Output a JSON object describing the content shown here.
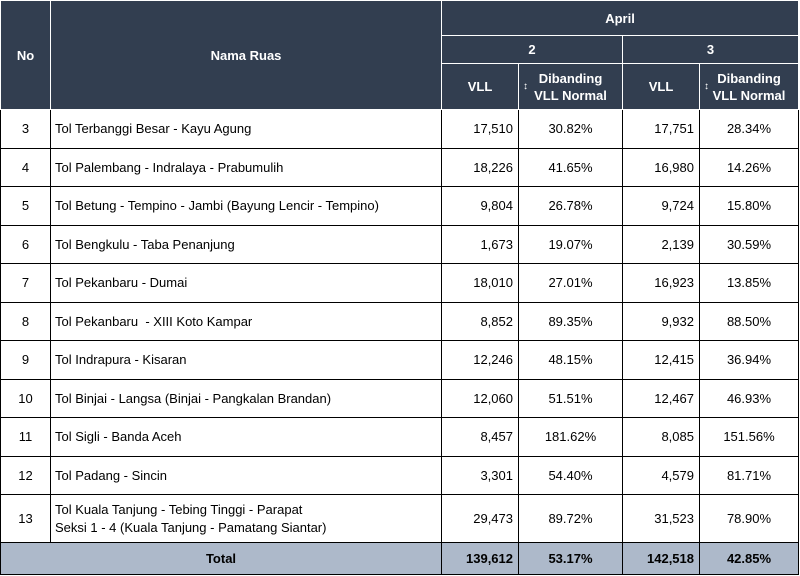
{
  "header": {
    "no": "No",
    "nama_ruas": "Nama Ruas",
    "month": "April",
    "day1": "2",
    "day2": "3",
    "vll": "VLL",
    "dibanding_line1": "Dibanding",
    "dibanding_line2": "VLL Normal",
    "arrow_icon": "↕"
  },
  "rows": [
    {
      "no": "3",
      "name": "Tol Terbanggi Besar - Kayu Agung",
      "vll1": "17,510",
      "pct1": "30.82%",
      "vll2": "17,751",
      "pct2": "28.34%"
    },
    {
      "no": "4",
      "name": "Tol Palembang - Indralaya - Prabumulih",
      "vll1": "18,226",
      "pct1": "41.65%",
      "vll2": "16,980",
      "pct2": "14.26%"
    },
    {
      "no": "5",
      "name": "Tol Betung - Tempino - Jambi (Bayung Lencir - Tempino)",
      "vll1": "9,804",
      "pct1": "26.78%",
      "vll2": "9,724",
      "pct2": "15.80%"
    },
    {
      "no": "6",
      "name": "Tol Bengkulu - Taba Penanjung",
      "vll1": "1,673",
      "pct1": "19.07%",
      "vll2": "2,139",
      "pct2": "30.59%"
    },
    {
      "no": "7",
      "name": "Tol Pekanbaru - Dumai",
      "vll1": "18,010",
      "pct1": "27.01%",
      "vll2": "16,923",
      "pct2": "13.85%"
    },
    {
      "no": "8",
      "name": "Tol Pekanbaru  - XIII Koto Kampar",
      "vll1": "8,852",
      "pct1": "89.35%",
      "vll2": "9,932",
      "pct2": "88.50%"
    },
    {
      "no": "9",
      "name": "Tol Indrapura - Kisaran",
      "vll1": "12,246",
      "pct1": "48.15%",
      "vll2": "12,415",
      "pct2": "36.94%"
    },
    {
      "no": "10",
      "name": "Tol Binjai - Langsa (Binjai - Pangkalan Brandan)",
      "vll1": "12,060",
      "pct1": "51.51%",
      "vll2": "12,467",
      "pct2": "46.93%"
    },
    {
      "no": "11",
      "name": "Tol Sigli - Banda Aceh",
      "vll1": "8,457",
      "pct1": "181.62%",
      "vll2": "8,085",
      "pct2": "151.56%"
    },
    {
      "no": "12",
      "name": "Tol Padang - Sincin",
      "vll1": "3,301",
      "pct1": "54.40%",
      "vll2": "4,579",
      "pct2": "81.71%"
    }
  ],
  "last_row": {
    "no": "13",
    "name_line1": "Tol Kuala Tanjung - Tebing Tinggi - Parapat",
    "name_line2": "Seksi 1 - 4 (Kuala Tanjung - Pamatang Siantar)",
    "vll1": "29,473",
    "pct1": "89.72%",
    "vll2": "31,523",
    "pct2": "78.90%"
  },
  "total": {
    "label": "Total",
    "vll1": "139,612",
    "pct1": "53.17%",
    "vll2": "142,518",
    "pct2": "42.85%"
  },
  "colors": {
    "header_bg": "#323e50",
    "total_bg": "#adb9ca"
  }
}
